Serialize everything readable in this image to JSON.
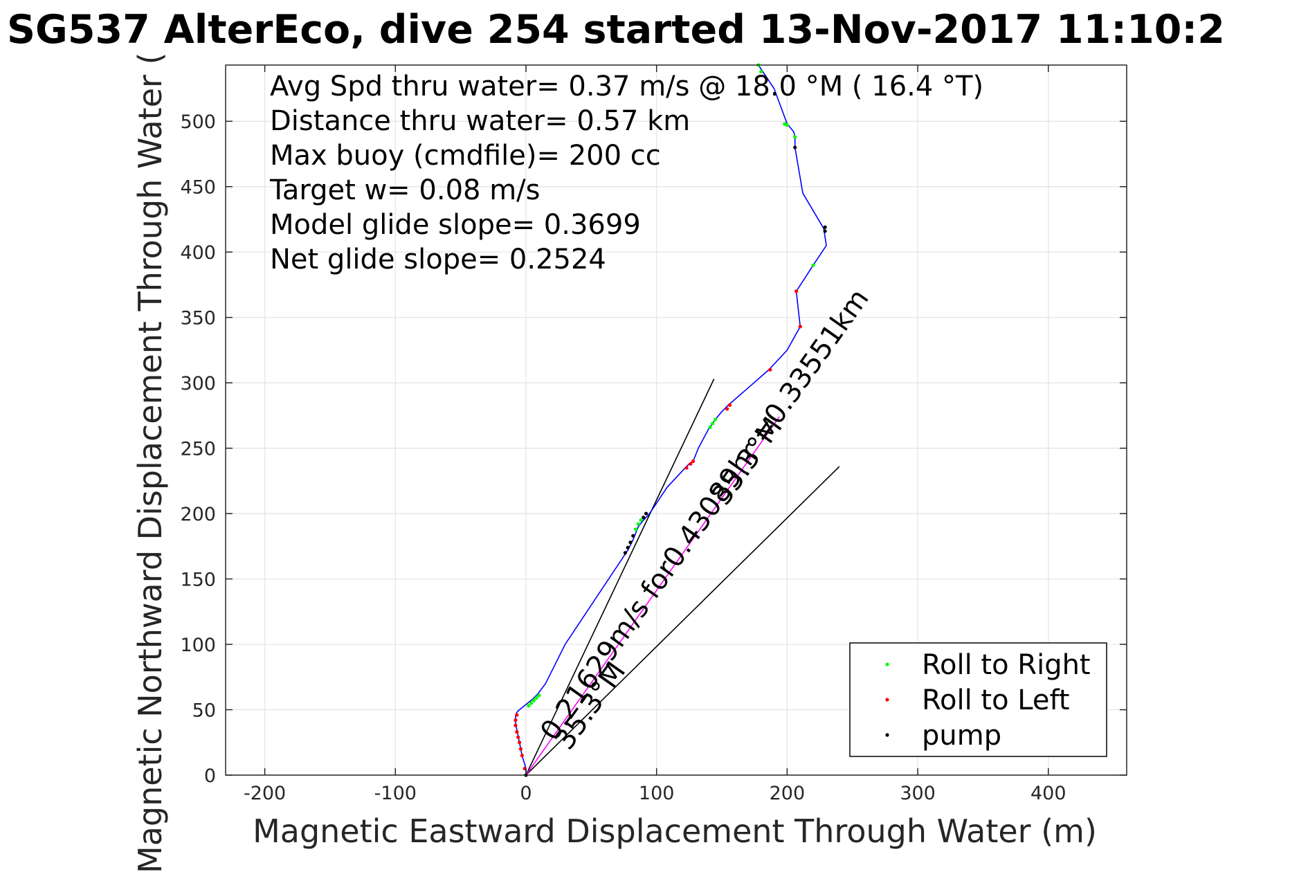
{
  "chart_data": {
    "type": "scatter",
    "title": "SG537 AlterEco, dive 254 started 13-Nov-2017 11:10:2",
    "xlabel": "Magnetic Eastward Displacement Through Water (m)",
    "ylabel": "Magnetic Northward Displacement Through Water (",
    "xlim": [
      -230,
      460
    ],
    "ylim": [
      0,
      543
    ],
    "xticks": [
      -200,
      -100,
      0,
      100,
      200,
      300,
      400
    ],
    "yticks": [
      0,
      50,
      100,
      150,
      200,
      250,
      300,
      350,
      400,
      450,
      500
    ],
    "grid": true,
    "legend_position": "bottom-right",
    "info_lines": [
      "Avg Spd thru water=  0.37 m/s @  18.0 °M ( 16.4 °T)",
      "Distance thru water=  0.57 km",
      "Max buoy (cmdfile)= 200 cc",
      "Target w= 0.08 m/s",
      "Model glide slope= 0.3699",
      "Net glide slope= 0.2524"
    ],
    "colors": {
      "track": "#0000ff",
      "roll_right": "#00ff00",
      "roll_left": "#ff0000",
      "pump": "#000000",
      "depth_average_current": "#ff00ff",
      "reference_lines": "#000000"
    },
    "track": {
      "x": [
        0,
        0,
        -3,
        -5,
        -7,
        -8,
        -8,
        -7,
        -5,
        0,
        5,
        9,
        15,
        30,
        50,
        70,
        78,
        82,
        86,
        90,
        93,
        96,
        108,
        122,
        125,
        128,
        132,
        140,
        145,
        150,
        155,
        170,
        186,
        200,
        210,
        207,
        220,
        230,
        228,
        212,
        206,
        206,
        205,
        200,
        190,
        178
      ],
      "y": [
        0,
        5,
        15,
        25,
        35,
        40,
        45,
        48,
        50,
        54,
        58,
        62,
        70,
        100,
        130,
        160,
        172,
        180,
        190,
        195,
        198,
        202,
        220,
        235,
        238,
        240,
        250,
        265,
        272,
        278,
        283,
        296,
        310,
        325,
        343,
        370,
        390,
        405,
        418,
        445,
        480,
        488,
        492,
        498,
        525,
        543
      ]
    },
    "series": [
      {
        "name": "Roll to Right",
        "x": [
          2,
          4,
          6,
          8,
          10,
          84,
          86,
          88,
          141,
          143,
          145,
          198,
          200,
          206,
          220,
          180,
          178
        ],
        "y": [
          53,
          55,
          57,
          59,
          61,
          188,
          192,
          195,
          266,
          269,
          272,
          498,
          497,
          488,
          390,
          538,
          543
        ]
      },
      {
        "name": "Roll to Left",
        "x": [
          -7,
          -8,
          -8,
          -7,
          -6,
          -5,
          -4,
          -3,
          -1,
          123,
          126,
          128,
          154,
          156,
          187,
          210,
          207
        ],
        "y": [
          46,
          42,
          38,
          33,
          29,
          25,
          20,
          15,
          5,
          235,
          238,
          240,
          280,
          283,
          310,
          343,
          370
        ]
      },
      {
        "name": "pump",
        "x": [
          0,
          76,
          78,
          80,
          82,
          90,
          92,
          206,
          229,
          229
        ],
        "y": [
          0,
          170,
          174,
          178,
          183,
          197,
          200,
          480,
          416,
          419
        ]
      }
    ],
    "reference_lines": [
      {
        "x": [
          0,
          144
        ],
        "y": [
          0,
          303
        ]
      },
      {
        "x": [
          0,
          240
        ],
        "y": [
          0,
          236
        ]
      }
    ],
    "depth_average_current_line": {
      "x": [
        0,
        194
      ],
      "y": [
        0,
        274
      ]
    },
    "annotations": [
      {
        "text": "0.21629m/s for0.43089hr =0.33551km",
        "x": 22,
        "y": 25,
        "angle_deg": -54.7
      },
      {
        "text": "35.3°M",
        "x": 153,
        "y": 205,
        "angle_deg": -54.7
      },
      {
        "text": "35.3°M",
        "x": 33,
        "y": 18,
        "angle_deg": -54.7
      }
    ]
  }
}
